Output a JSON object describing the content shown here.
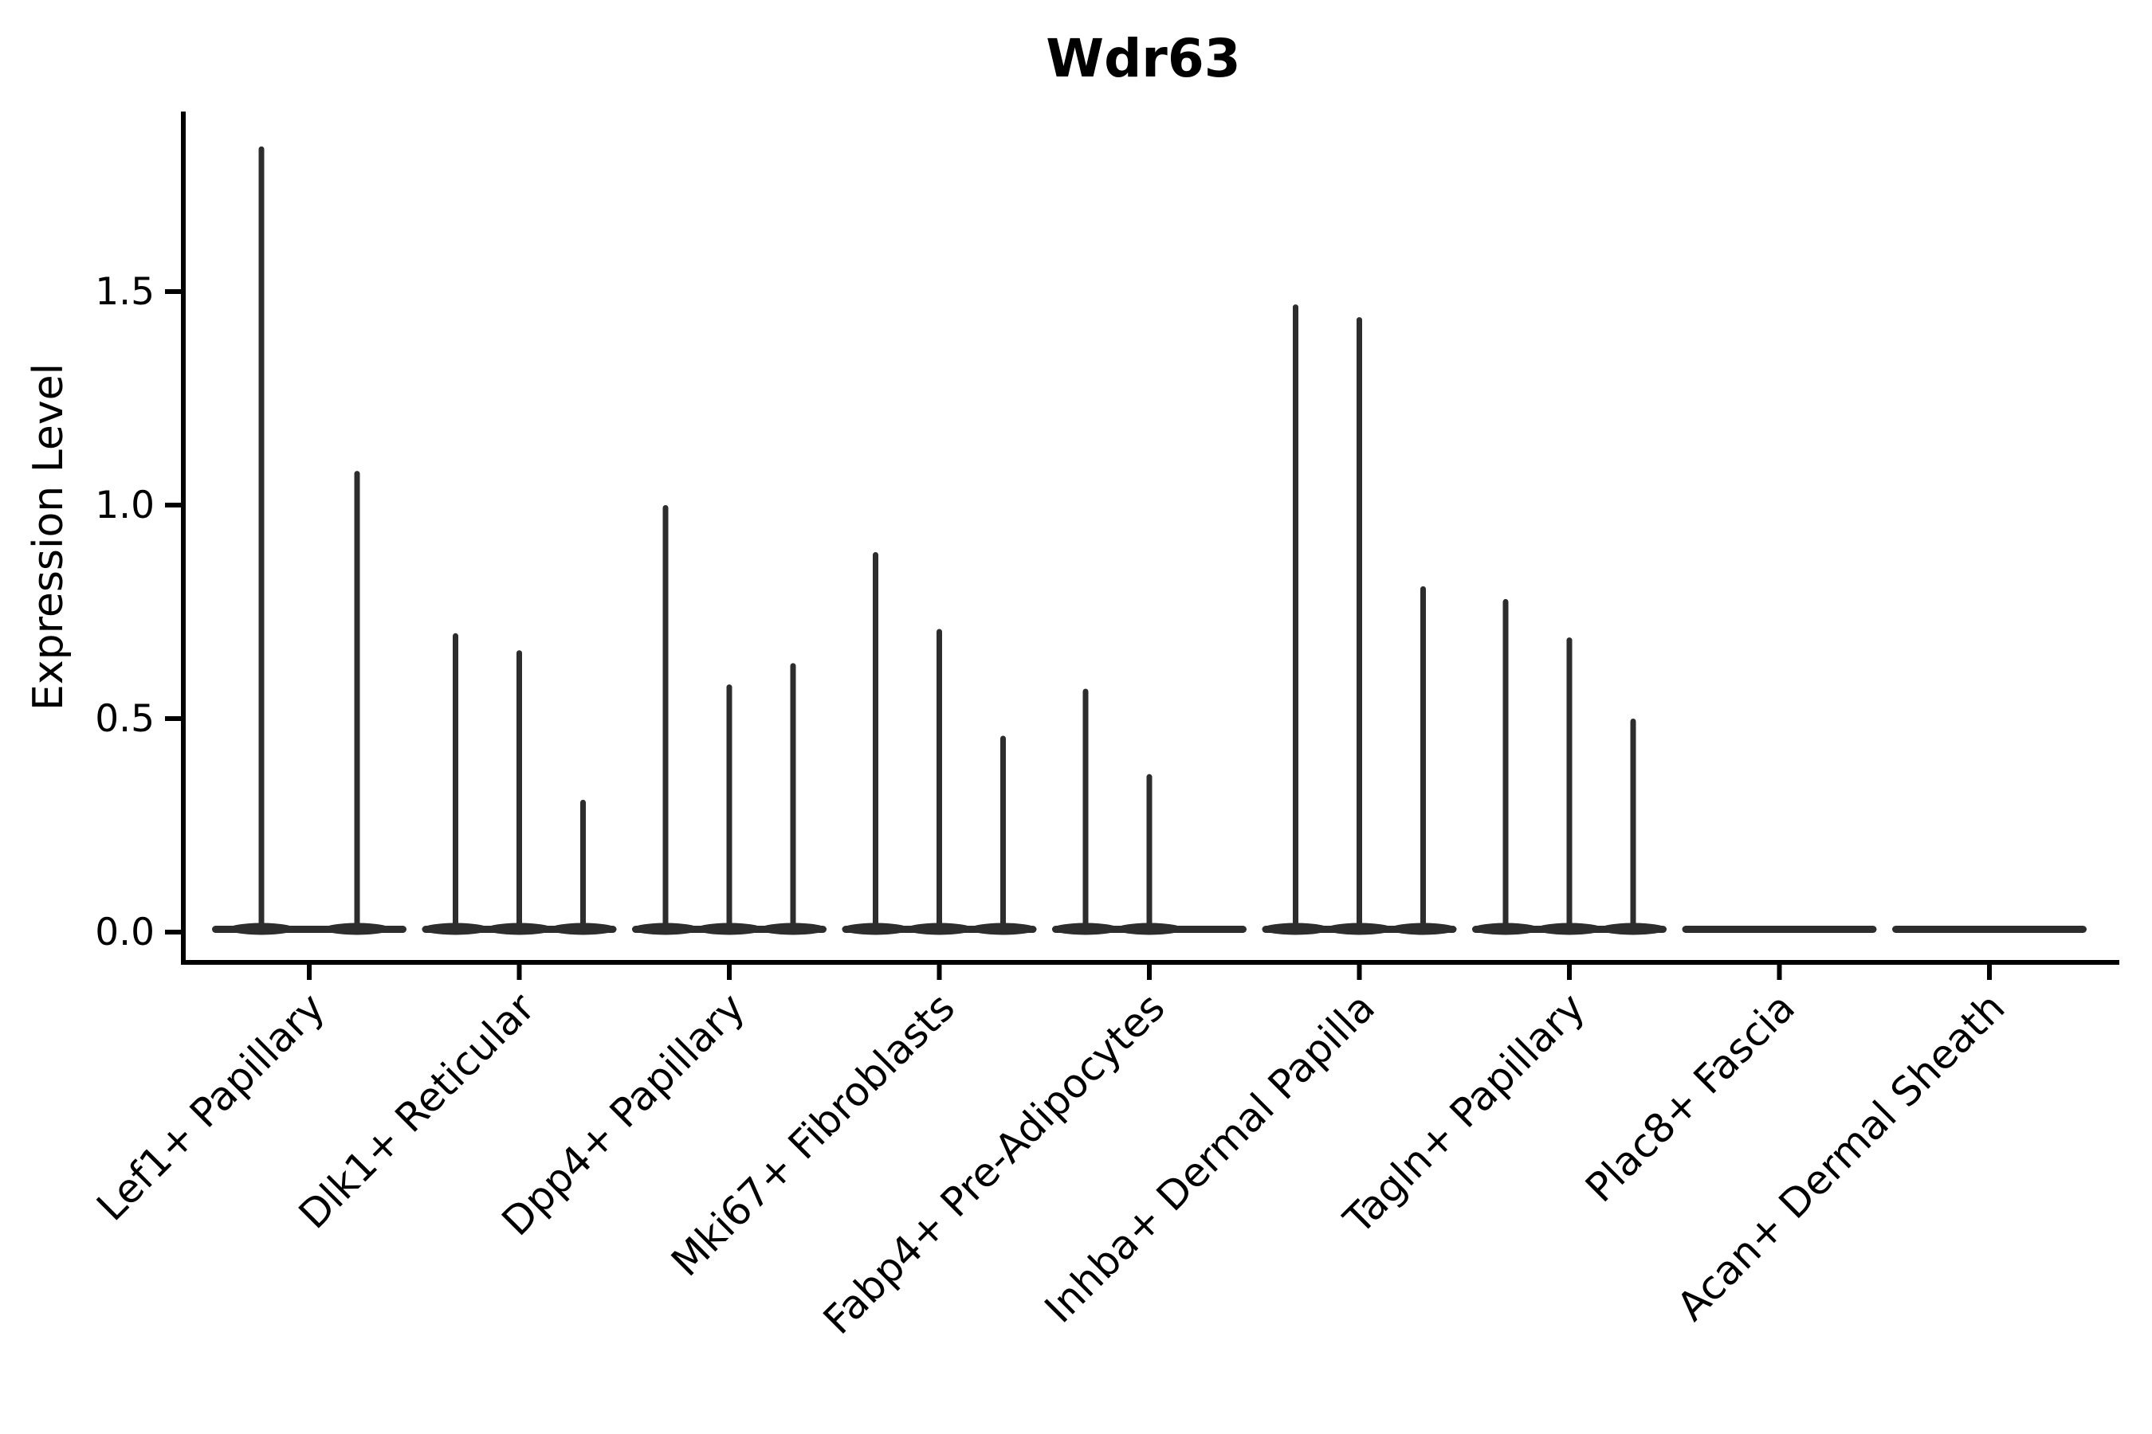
{
  "chart_data": {
    "type": "violin",
    "title": "Wdr63",
    "ylabel": "Expression Level",
    "xlabel": "",
    "grid": false,
    "legend": "none",
    "background_color": "#ffffff",
    "violin_color": "#2d2d2d",
    "axis_color": "#000000",
    "ytick_labels": [
      "0.0",
      "0.5",
      "1.0",
      "1.5"
    ],
    "ytick_values": [
      0.0,
      0.5,
      1.0,
      1.5
    ],
    "ylim": [
      -0.07,
      1.92
    ],
    "categories": [
      {
        "label": "Lef1+ Papillary",
        "violins": [
          {
            "offset": -60,
            "max": 1.84
          },
          {
            "offset": 60,
            "max": 1.08
          }
        ]
      },
      {
        "label": "Dlk1+ Reticular",
        "violins": [
          {
            "offset": -80,
            "max": 0.7
          },
          {
            "offset": 0,
            "max": 0.66
          },
          {
            "offset": 80,
            "max": 0.31
          }
        ]
      },
      {
        "label": "Dpp4+ Papillary",
        "violins": [
          {
            "offset": -80,
            "max": 1.0
          },
          {
            "offset": 0,
            "max": 0.58
          },
          {
            "offset": 80,
            "max": 0.63
          }
        ]
      },
      {
        "label": "Mki67+ Fibroblasts",
        "violins": [
          {
            "offset": -80,
            "max": 0.89
          },
          {
            "offset": 0,
            "max": 0.71
          },
          {
            "offset": 80,
            "max": 0.46
          }
        ]
      },
      {
        "label": "Fabp4+ Pre-Adipocytes",
        "violins": [
          {
            "offset": -80,
            "max": 0.57
          },
          {
            "offset": 0,
            "max": 0.37
          }
        ]
      },
      {
        "label": "Inhba+ Dermal Papilla",
        "violins": [
          {
            "offset": -80,
            "max": 1.47
          },
          {
            "offset": 0,
            "max": 1.44
          },
          {
            "offset": 80,
            "max": 0.81
          }
        ]
      },
      {
        "label": "Tagln+ Papillary",
        "violins": [
          {
            "offset": -80,
            "max": 0.78
          },
          {
            "offset": 0,
            "max": 0.69
          },
          {
            "offset": 80,
            "max": 0.5
          }
        ]
      },
      {
        "label": "Plac8+ Fascia",
        "violins": []
      },
      {
        "label": "Acan+ Dermal Sheath",
        "violins": []
      }
    ]
  }
}
